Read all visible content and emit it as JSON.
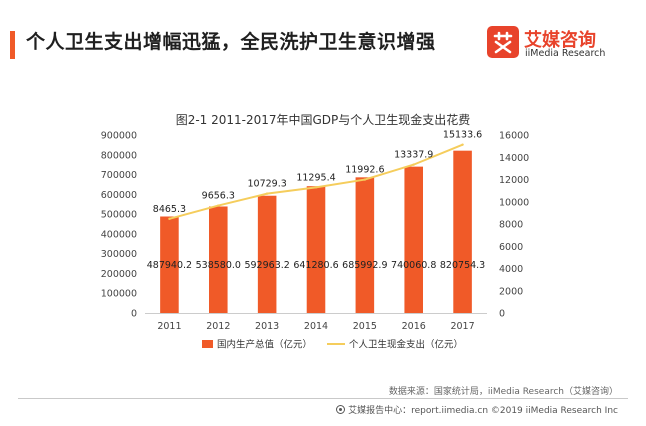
{
  "header": {
    "title": "个人卫生支出增幅迅猛，全民洗护卫生意识增强",
    "accent_color": "#f05a28"
  },
  "logo": {
    "mark_icon": "ai-media-logo-icon",
    "cn": "艾媒咨询",
    "en": "iiMedia Research",
    "color": "#e8432b"
  },
  "chart_data": {
    "type": "bar+line",
    "title": "图2-1 2011-2017年中国GDP与个人卫生现金支出花费",
    "categories": [
      "2011",
      "2012",
      "2013",
      "2014",
      "2015",
      "2016",
      "2017"
    ],
    "series": [
      {
        "name": "国内生产总值（亿元）",
        "type": "bar",
        "axis": "left",
        "color": "#f05a28",
        "values": [
          487940.2,
          538580.0,
          592963.2,
          641280.6,
          685992.9,
          740060.8,
          820754.3
        ],
        "labels": [
          "487940.2",
          "538580.0",
          "592963.2",
          "641280.6",
          "685992.9",
          "740060.8",
          "820754.3"
        ]
      },
      {
        "name": "个人卫生现金支出（亿元）",
        "type": "line",
        "axis": "right",
        "color": "#f5cd5c",
        "values": [
          8465.3,
          9656.3,
          10729.3,
          11295.4,
          11992.6,
          13337.9,
          15133.6
        ],
        "labels": [
          "8465.3",
          "9656.3",
          "10729.3",
          "11295.4",
          "11992.6",
          "13337.9",
          "15133.6"
        ]
      }
    ],
    "y_left": {
      "min": 0,
      "max": 900000,
      "ticks": [
        "0",
        "100000",
        "200000",
        "300000",
        "400000",
        "500000",
        "600000",
        "700000",
        "800000",
        "900000"
      ]
    },
    "y_right": {
      "min": 0,
      "max": 16000,
      "ticks": [
        "0",
        "2000",
        "4000",
        "6000",
        "8000",
        "10000",
        "12000",
        "14000",
        "16000"
      ]
    },
    "grid": false,
    "legend_position": "bottom"
  },
  "source": "数据来源：国家统计局，iiMedia Research（艾媒咨询）",
  "footer": {
    "icon": "ai-media-report-icon",
    "text": "艾媒报告中心：report.iimedia.cn ©2019 iiMedia Research Inc"
  }
}
